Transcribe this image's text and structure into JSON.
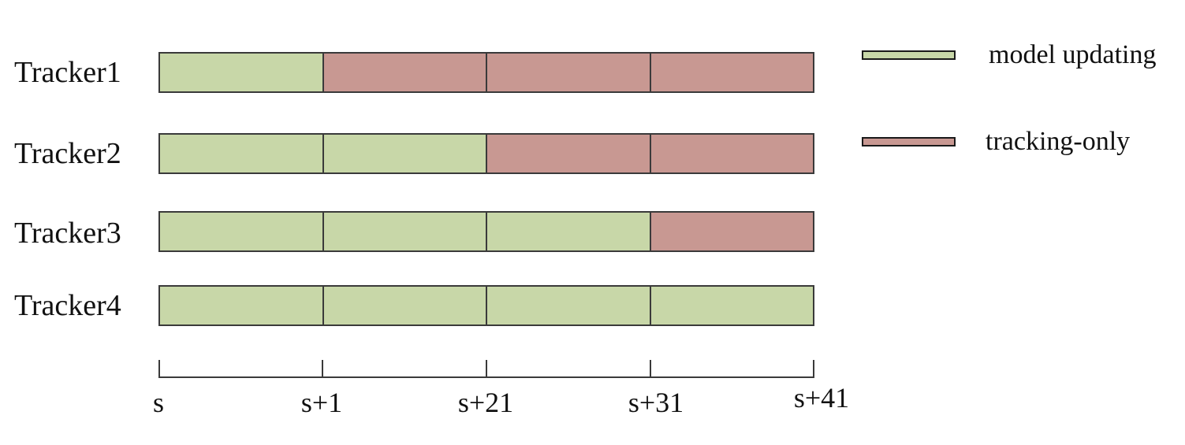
{
  "colors": {
    "model_updating": "#c8d7a8",
    "tracking_only": "#c89892"
  },
  "legend": {
    "model_updating": "model updating",
    "tracking_only": "tracking-only"
  },
  "trackers": [
    {
      "label": "Tracker1",
      "segments": [
        "model_updating",
        "tracking_only",
        "tracking_only",
        "tracking_only"
      ]
    },
    {
      "label": "Tracker2",
      "segments": [
        "model_updating",
        "model_updating",
        "tracking_only",
        "tracking_only"
      ]
    },
    {
      "label": "Tracker3",
      "segments": [
        "model_updating",
        "model_updating",
        "model_updating",
        "tracking_only"
      ]
    },
    {
      "label": "Tracker4",
      "segments": [
        "model_updating",
        "model_updating",
        "model_updating",
        "model_updating"
      ]
    }
  ],
  "axis": {
    "ticks": [
      "s",
      "s+1",
      "s+21",
      "s+31",
      "s+41"
    ]
  }
}
